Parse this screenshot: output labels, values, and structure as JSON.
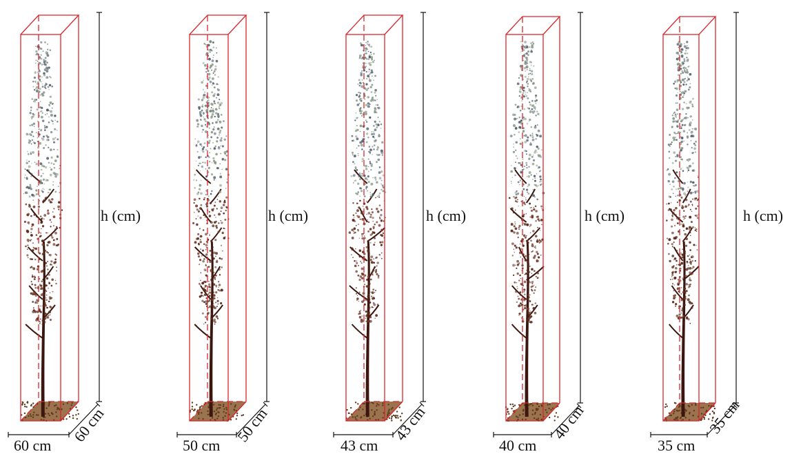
{
  "figure": {
    "panels": [
      {
        "height_label": "h (cm)",
        "width_label": "60 cm",
        "depth_label": "60 cm"
      },
      {
        "height_label": "h (cm)",
        "width_label": "50 cm",
        "depth_label": "50 cm"
      },
      {
        "height_label": "h (cm)",
        "width_label": "43 cm",
        "depth_label": "43 cm"
      },
      {
        "height_label": "h (cm)",
        "width_label": "40 cm",
        "depth_label": "40 cm"
      },
      {
        "height_label": "h (cm)",
        "width_label": "35 cm",
        "depth_label": "35 cm"
      }
    ],
    "colors": {
      "box": "#d9262c",
      "trunk": "#3a160f",
      "foliage_dark": "#5a2a1c",
      "foliage_light": "#8a9a8a",
      "ground": "#8a5a30",
      "dimension": "#111111"
    }
  }
}
